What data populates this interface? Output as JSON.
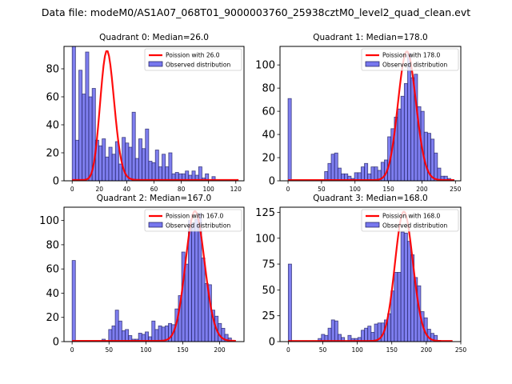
{
  "figure": {
    "suptitle": "Data file: modeM0/AS1A07_068T01_9000003760_25938cztM0_level2_quad_clean.evt"
  },
  "chart_data": [
    {
      "type": "bar",
      "title": "Quadrant 0: Median=26.0",
      "median": 26.0,
      "xlim": [
        -6,
        126
      ],
      "ylim": [
        0,
        96
      ],
      "xticks": [
        0,
        20,
        40,
        60,
        80,
        100,
        120
      ],
      "xtick_labels": [
        "0",
        "20",
        "40",
        "60",
        "80",
        "100",
        "120"
      ],
      "yticks": [
        0,
        20,
        40,
        60,
        80
      ],
      "ytick_labels": [
        "0",
        "20",
        "40",
        "60",
        "80"
      ],
      "bin_start": 0,
      "bin_width": 2.44,
      "counts": [
        97,
        29,
        79,
        62,
        92,
        60,
        66,
        29,
        25,
        30,
        17,
        24,
        19,
        28,
        12,
        31,
        27,
        24,
        49,
        16,
        30,
        23,
        37,
        14,
        13,
        22,
        10,
        19,
        10,
        20,
        5,
        6,
        5,
        5,
        7,
        4,
        7,
        4,
        10,
        2,
        5,
        0,
        3,
        0,
        0,
        0,
        0,
        0,
        0,
        0
      ],
      "poisson": {
        "label": "Poission with 26.0",
        "mean": 26.0,
        "peak": 92,
        "x_range": [
          0,
          122
        ]
      },
      "legend": {
        "position": "upper right",
        "entries": [
          "Poission with 26.0",
          "Observed distribution"
        ]
      }
    },
    {
      "type": "bar",
      "title": "Quadrant 1: Median=178.0",
      "median": 178.0,
      "xlim": [
        -12,
        258
      ],
      "ylim": [
        0,
        116
      ],
      "xticks": [
        0,
        50,
        100,
        150,
        200,
        250
      ],
      "xtick_labels": [
        "0",
        "50",
        "100",
        "150",
        "200",
        "250"
      ],
      "yticks": [
        0,
        20,
        40,
        60,
        80,
        100
      ],
      "ytick_labels": [
        "0",
        "20",
        "40",
        "60",
        "80",
        "100"
      ],
      "bin_start": 0,
      "bin_width": 4.96,
      "counts": [
        71,
        0,
        0,
        0,
        0,
        0,
        0,
        0,
        0,
        0,
        0,
        8,
        15,
        23,
        24,
        11,
        6,
        6,
        4,
        2,
        7,
        7,
        12,
        15,
        6,
        12,
        12,
        9,
        16,
        18,
        38,
        45,
        55,
        62,
        73,
        84,
        110,
        89,
        92,
        64,
        60,
        42,
        41,
        36,
        24,
        11,
        4,
        4,
        2,
        1
      ],
      "poisson": {
        "label": "Poission with 178.0",
        "mean": 178.0,
        "peak": 111,
        "x_range": [
          0,
          248
        ]
      },
      "legend": {
        "position": "upper right",
        "entries": [
          "Poission with 178.0",
          "Observed distribution"
        ]
      }
    },
    {
      "type": "bar",
      "title": "Quadrant 2: Median=167.0",
      "median": 167.0,
      "xlim": [
        -11,
        233
      ],
      "ylim": [
        0,
        111
      ],
      "xticks": [
        0,
        50,
        100,
        150,
        200
      ],
      "xtick_labels": [
        "0",
        "50",
        "100",
        "150",
        "200"
      ],
      "yticks": [
        0,
        20,
        40,
        60,
        80,
        100
      ],
      "ytick_labels": [
        "0",
        "20",
        "40",
        "60",
        "80",
        "100"
      ],
      "bin_start": 0,
      "bin_width": 4.5,
      "counts": [
        67,
        0,
        0,
        0,
        0,
        0,
        0,
        0,
        0,
        2,
        0,
        10,
        13,
        26,
        17,
        9,
        10,
        5,
        2,
        2,
        7,
        6,
        8,
        4,
        17,
        10,
        13,
        12,
        13,
        15,
        14,
        27,
        38,
        74,
        64,
        100,
        98,
        101,
        106,
        69,
        48,
        47,
        26,
        21,
        15,
        11,
        6,
        3,
        0,
        0
      ],
      "poisson": {
        "label": "Poission with 167.0",
        "mean": 167.0,
        "peak": 107,
        "x_range": [
          0,
          222
        ]
      },
      "legend": {
        "position": "upper right",
        "entries": [
          "Poission with 167.0",
          "Observed distribution"
        ]
      }
    },
    {
      "type": "bar",
      "title": "Quadrant 3: Median=168.0",
      "median": 168.0,
      "xlim": [
        -12,
        250
      ],
      "ylim": [
        0,
        130
      ],
      "xticks": [
        0,
        50,
        100,
        150,
        200,
        250
      ],
      "xtick_labels": [
        "0",
        "50",
        "100",
        "150",
        "200",
        "250"
      ],
      "yticks": [
        0,
        25,
        50,
        75,
        100,
        125
      ],
      "ytick_labels": [
        "0",
        "25",
        "50",
        "75",
        "100",
        "125"
      ],
      "bin_start": 0,
      "bin_width": 4.8,
      "counts": [
        75,
        0,
        0,
        0,
        0,
        0,
        0,
        0,
        0,
        3,
        7,
        6,
        13,
        21,
        20,
        7,
        4,
        0,
        6,
        3,
        3,
        4,
        11,
        13,
        15,
        9,
        17,
        18,
        18,
        21,
        27,
        49,
        67,
        67,
        106,
        105,
        97,
        84,
        62,
        54,
        29,
        23,
        12,
        8,
        6,
        1,
        0,
        0,
        0,
        0
      ],
      "poisson": {
        "label": "Poission with 168.0",
        "mean": 168.0,
        "peak": 125,
        "x_range": [
          0,
          238
        ]
      },
      "legend": {
        "position": "upper right",
        "entries": [
          "Poission with 168.0",
          "Observed distribution"
        ]
      }
    }
  ],
  "colors": {
    "bar_fill": "#7777ee",
    "bar_edge": "#1a1a5a",
    "poisson_line": "#ff0000"
  }
}
